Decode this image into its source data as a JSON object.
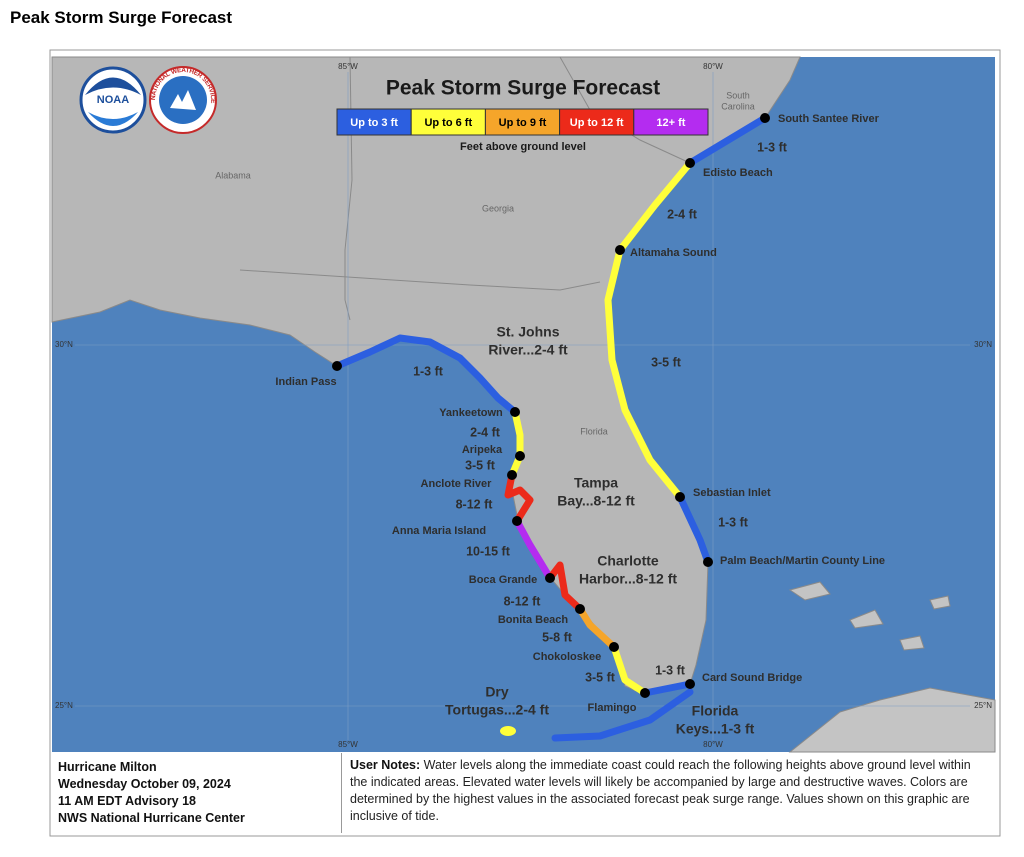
{
  "page_title": "Peak Storm Surge Forecast",
  "map": {
    "title": "Peak Storm Surge Forecast",
    "logos": {
      "noaa": "NOAA",
      "nws": "NATIONAL WEATHER SERVICE"
    },
    "legend": {
      "items": [
        {
          "label": "Up to 3 ft",
          "color": "#2c5fe0",
          "text_color": "#ffffff"
        },
        {
          "label": "Up to 6 ft",
          "color": "#ffff3a",
          "text_color": "#000000"
        },
        {
          "label": "Up to 9 ft",
          "color": "#f5a52a",
          "text_color": "#000000"
        },
        {
          "label": "Up to 12 ft",
          "color": "#ec2a1a",
          "text_color": "#ffffff"
        },
        {
          "label": "12+ ft",
          "color": "#b42cf0",
          "text_color": "#ffffff"
        }
      ],
      "caption": "Feet above ground level"
    },
    "region_labels": [
      {
        "lines": [
          "South",
          "Carolina"
        ]
      },
      {
        "lines": [
          "Alabama"
        ]
      },
      {
        "lines": [
          "Georgia"
        ]
      },
      {
        "lines": [
          "Florida"
        ]
      }
    ],
    "grid_labels": [
      "85°W",
      "80°W",
      "85°W",
      "80°W",
      "30°N",
      "30°N",
      "25°N",
      "25°N"
    ],
    "locations": [
      "South Santee River",
      "Edisto Beach",
      "Altamaha Sound",
      "Sebastian Inlet",
      "Palm Beach/Martin County Line",
      "Card Sound Bridge",
      "Flamingo",
      "Bonita Beach",
      "Chokoloskee",
      "Boca Grande",
      "Anna Maria Island",
      "Anclote River",
      "Aripeka",
      "Yankeetown",
      "Indian Pass"
    ],
    "surge_labels": [
      {
        "lines": [
          "1-3 ft"
        ]
      },
      {
        "lines": [
          "2-4 ft"
        ]
      },
      {
        "lines": [
          "St. Johns",
          "River...2-4 ft"
        ]
      },
      {
        "lines": [
          "3-5 ft"
        ]
      },
      {
        "lines": [
          "1-3 ft"
        ]
      },
      {
        "lines": [
          "Tampa",
          "Bay...8-12 ft"
        ]
      },
      {
        "lines": [
          "Charlotte",
          "Harbor...8-12 ft"
        ]
      },
      {
        "lines": [
          "1-3 ft"
        ]
      },
      {
        "lines": [
          "2-4 ft"
        ]
      },
      {
        "lines": [
          "3-5 ft"
        ]
      },
      {
        "lines": [
          "8-12 ft"
        ]
      },
      {
        "lines": [
          "10-15 ft"
        ]
      },
      {
        "lines": [
          "8-12 ft"
        ]
      },
      {
        "lines": [
          "5-8 ft"
        ]
      },
      {
        "lines": [
          "3-5 ft"
        ]
      },
      {
        "lines": [
          "1-3 ft"
        ]
      },
      {
        "lines": [
          "Dry",
          "Tortugas...2-4 ft"
        ]
      },
      {
        "lines": [
          "Florida",
          "Keys...1-3 ft"
        ]
      }
    ]
  },
  "info": {
    "lines": [
      "Hurricane Milton",
      "Wednesday October 09, 2024",
      "11 AM EDT Advisory 18",
      "NWS National Hurricane Center"
    ]
  },
  "notes": {
    "heading": "User Notes:",
    "text": "Water levels along the immediate coast could reach the following heights above ground level within the indicated areas. Elevated water levels will likely be accompanied by large and destructive waves. Colors are determined by the highest values in the associated forecast peak surge range. Values shown on this graphic are inclusive of tide."
  }
}
